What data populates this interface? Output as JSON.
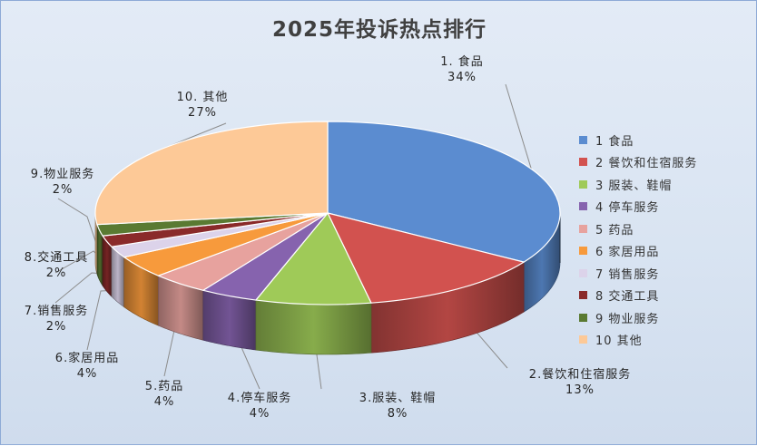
{
  "chart_data": {
    "type": "pie",
    "title": "2025年投诉热点排行",
    "slices": [
      {
        "label": "1. 食品",
        "legend": "1 食品",
        "value": 34,
        "pct_label": "34%",
        "color": "#5b8cd0"
      },
      {
        "label": "2.餐饮和住宿服务",
        "legend": "2 餐饮和住宿服务",
        "value": 13,
        "pct_label": "13%",
        "color": "#d2524f"
      },
      {
        "label": "3.服装、鞋帽",
        "legend": "3 服装、鞋帽",
        "value": 8,
        "pct_label": "8%",
        "color": "#9fca58"
      },
      {
        "label": "4.停车服务",
        "legend": "4 停车服务",
        "value": 4,
        "pct_label": "4%",
        "color": "#8663ae"
      },
      {
        "label": "5.药品",
        "legend": "5 药品",
        "value": 4,
        "pct_label": "4%",
        "color": "#e7a29e"
      },
      {
        "label": "6.家居用品",
        "legend": "6 家居用品",
        "value": 4,
        "pct_label": "4%",
        "color": "#f79a3c"
      },
      {
        "label": "7.销售服务",
        "legend": "7 销售服务",
        "value": 2,
        "pct_label": "2%",
        "color": "#dcd3ea"
      },
      {
        "label": "8.交通工具",
        "legend": "8 交通工具",
        "value": 2,
        "pct_label": "2%",
        "color": "#8a2a2a"
      },
      {
        "label": "9.物业服务",
        "legend": "9 物业服务",
        "value": 2,
        "pct_label": "2%",
        "color": "#5a7a32"
      },
      {
        "label": "10. 其他",
        "legend": "10 其他",
        "value": 27,
        "pct_label": "27%",
        "color": "#fdc997"
      }
    ],
    "legend_position": "right",
    "style": "3d"
  }
}
